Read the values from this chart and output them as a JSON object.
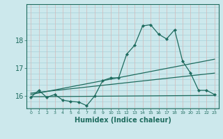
{
  "xlabel": "Humidex (Indice chaleur)",
  "bg_color": "#cce8ec",
  "line_color": "#1e6b5e",
  "grid_color_h": "#a8d0d8",
  "grid_color_v": "#d4b8b8",
  "xlim": [
    -0.5,
    23.5
  ],
  "ylim": [
    15.55,
    19.3
  ],
  "yticks": [
    16,
    17,
    18
  ],
  "xticks": [
    0,
    1,
    2,
    3,
    4,
    5,
    6,
    7,
    8,
    9,
    10,
    11,
    12,
    13,
    14,
    15,
    16,
    17,
    18,
    19,
    20,
    21,
    22,
    23
  ],
  "main_x": [
    0,
    1,
    2,
    3,
    4,
    5,
    6,
    7,
    8,
    9,
    10,
    11,
    12,
    13,
    14,
    15,
    16,
    17,
    18,
    19,
    20,
    21,
    22,
    23
  ],
  "main_y": [
    15.95,
    16.2,
    15.95,
    16.05,
    15.85,
    15.8,
    15.78,
    15.65,
    16.0,
    16.55,
    16.65,
    16.65,
    17.5,
    17.82,
    18.52,
    18.56,
    18.22,
    18.05,
    18.38,
    17.25,
    16.82,
    16.2,
    16.2,
    16.05
  ],
  "trend1_x": [
    0,
    23
  ],
  "trend1_y": [
    15.97,
    16.02
  ],
  "trend2_x": [
    0,
    23
  ],
  "trend2_y": [
    16.05,
    17.32
  ],
  "trend3_x": [
    0,
    23
  ],
  "trend3_y": [
    16.1,
    16.82
  ]
}
